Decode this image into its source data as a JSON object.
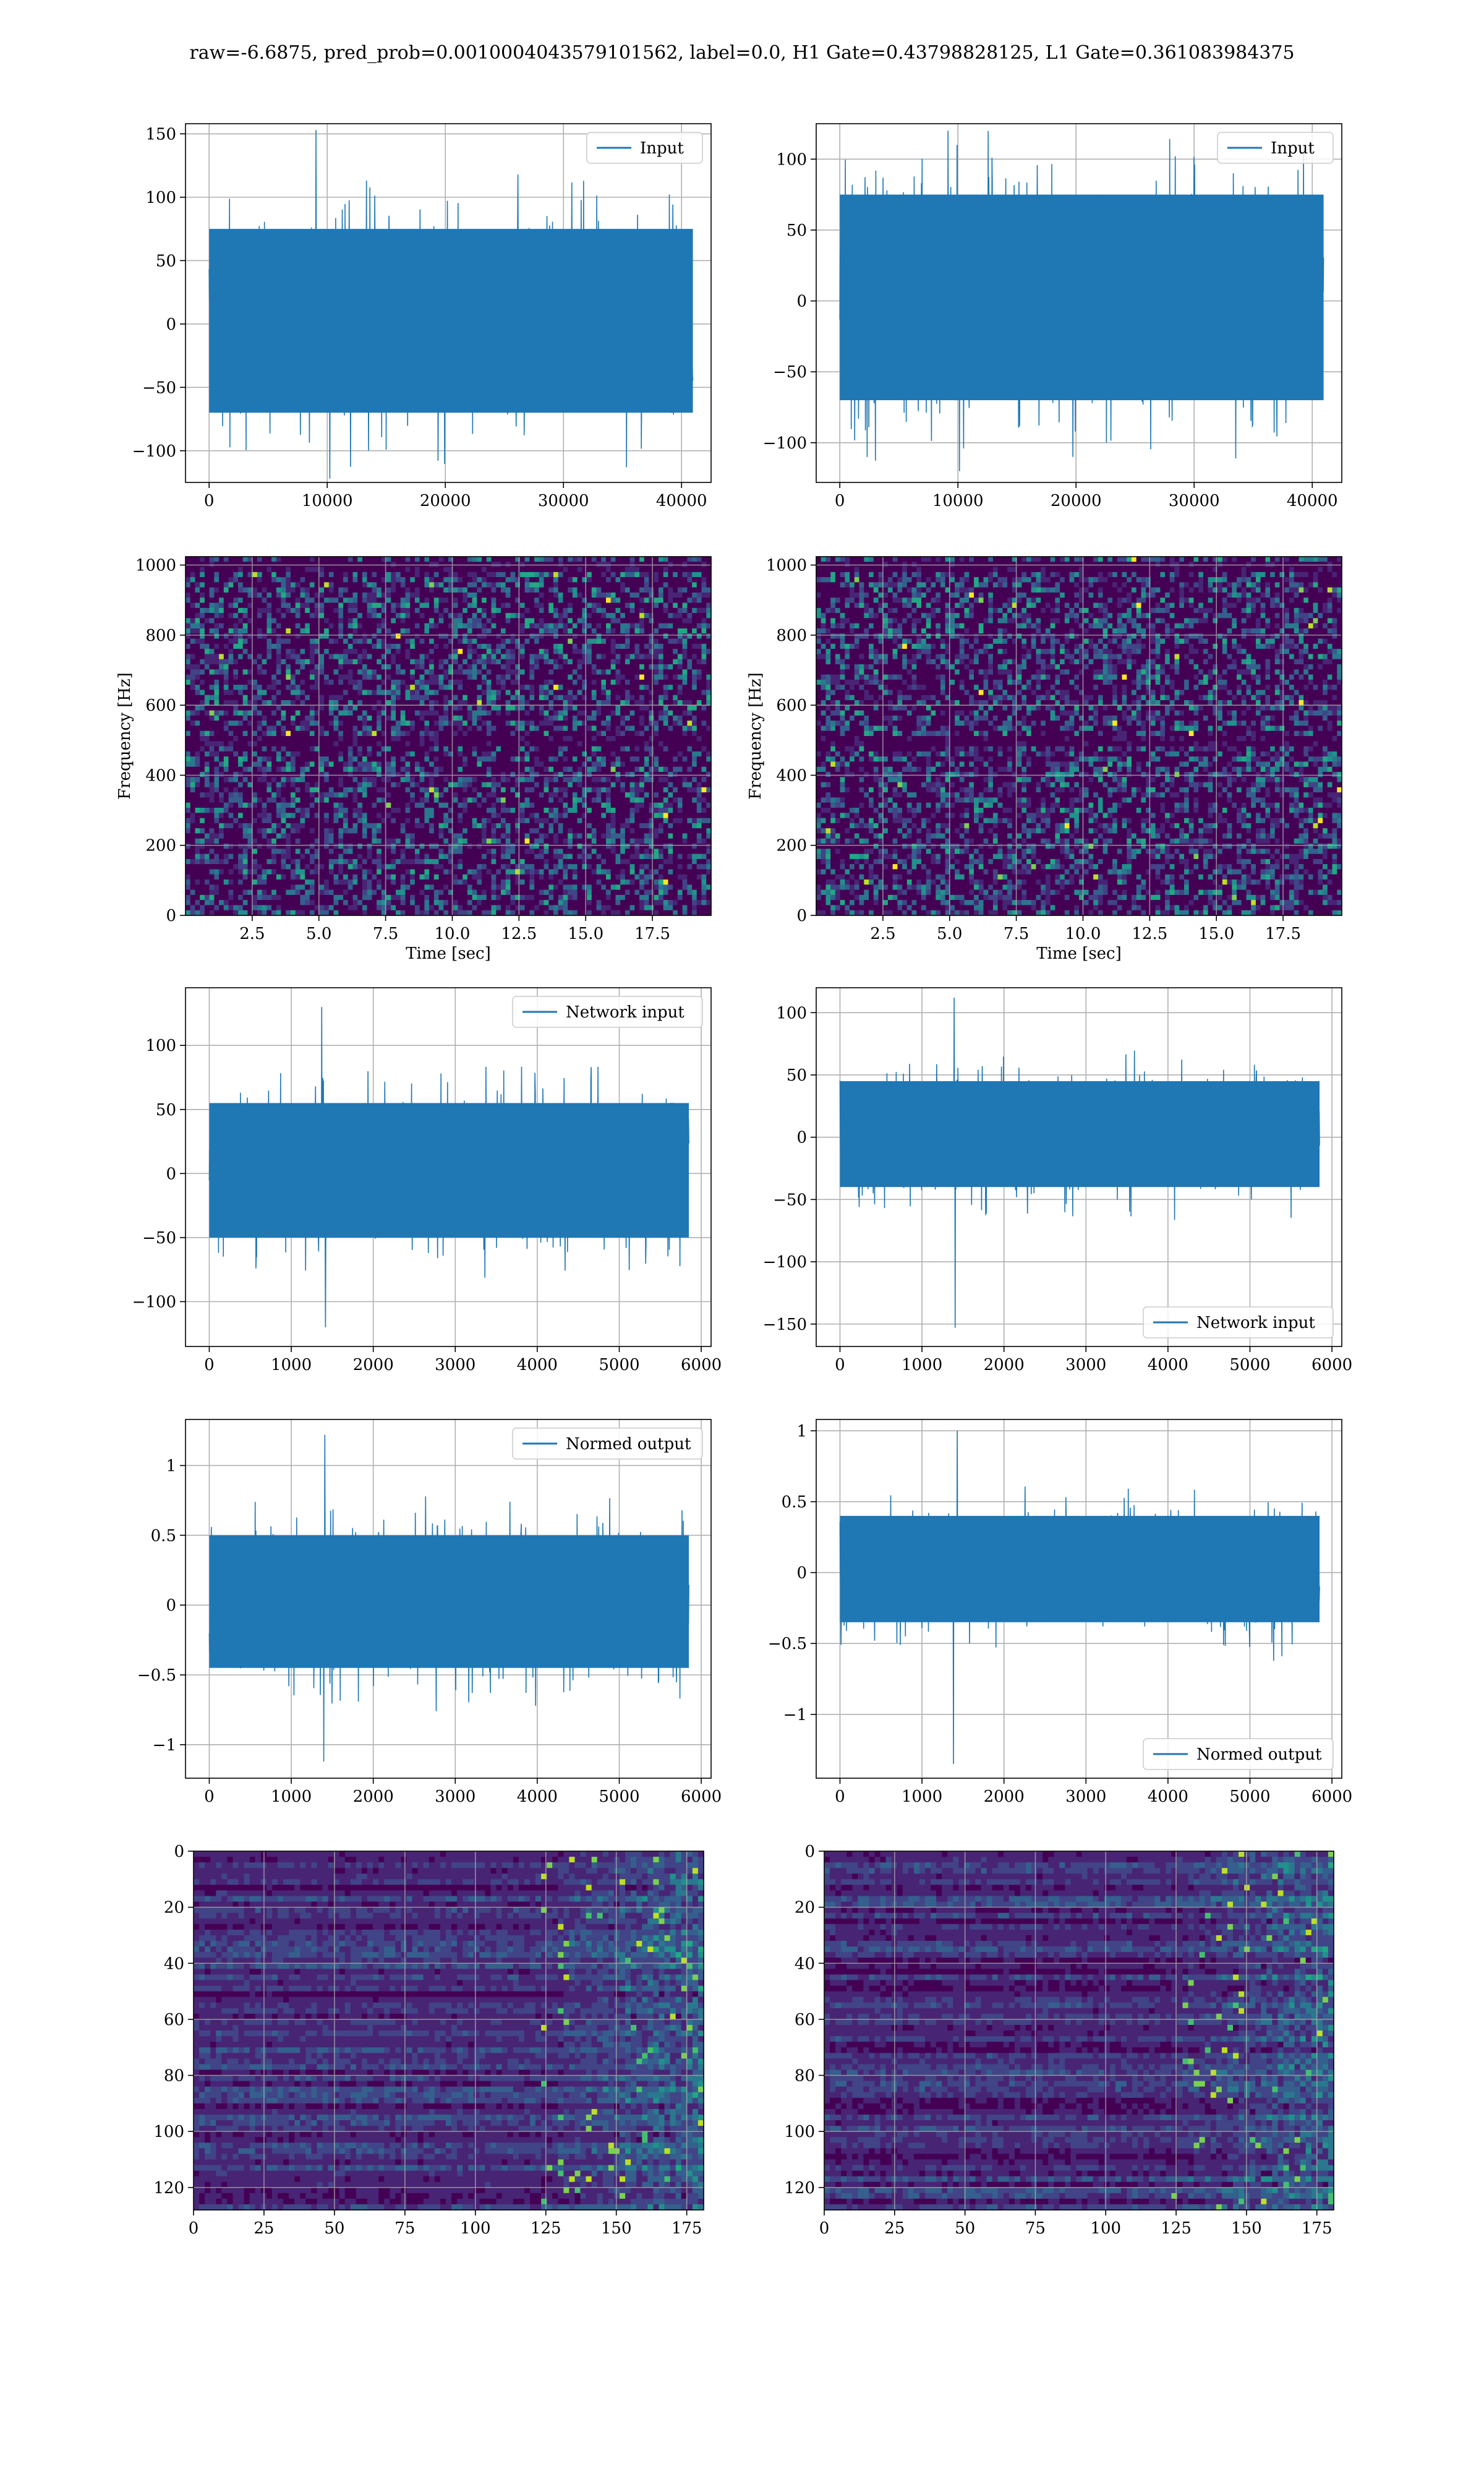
{
  "suptitle": "raw=-6.6875, pred_prob=0.0010004043579101562, label=0.0, H1 Gate=0.43798828125, L1 Gate=0.361083984375",
  "colors": {
    "line": "#1f77b4",
    "grid": "#b0b0b0",
    "viridis_dark": "#440154",
    "viridis_mid": "#3b528b",
    "viridis_teal": "#21918c",
    "viridis_green": "#5ec962",
    "viridis_yellow": "#fde725"
  },
  "chart_data": [
    {
      "id": "p00",
      "type": "line",
      "detector": "H1",
      "legend": "Input",
      "legend_loc": "upper right",
      "xlim": [
        -2000,
        42500
      ],
      "ylim": [
        -125,
        158
      ],
      "xticks": [
        0,
        10000,
        20000,
        30000,
        40000
      ],
      "yticks": [
        -100,
        -50,
        0,
        50,
        100,
        150
      ],
      "n_samples": 40960,
      "envelope_bulk": [
        -70,
        75
      ],
      "extremes": [
        -122,
        153
      ],
      "xlabel": "",
      "ylabel": "",
      "grid": true
    },
    {
      "id": "p01",
      "type": "line",
      "detector": "L1",
      "legend": "Input",
      "legend_loc": "upper right",
      "xlim": [
        -2000,
        42500
      ],
      "ylim": [
        -128,
        125
      ],
      "xticks": [
        0,
        10000,
        20000,
        30000,
        40000
      ],
      "yticks": [
        -100,
        -50,
        0,
        50,
        100
      ],
      "n_samples": 40960,
      "envelope_bulk": [
        -70,
        75
      ],
      "extremes": [
        -120,
        120
      ],
      "xlabel": "",
      "ylabel": "",
      "grid": true
    },
    {
      "id": "p10",
      "type": "heatmap",
      "detector": "H1",
      "xlim": [
        0,
        19.7
      ],
      "ylim": [
        0,
        1024
      ],
      "xticks": [
        2.5,
        5.0,
        7.5,
        10.0,
        12.5,
        15.0,
        17.5
      ],
      "yticks": [
        0,
        200,
        400,
        600,
        800,
        1000
      ],
      "xtick_labels": [
        "2.5",
        "5.0",
        "7.5",
        "10.0",
        "12.5",
        "15.0",
        "17.5"
      ],
      "xlabel": "Time [sec]",
      "ylabel": "Frequency [Hz]",
      "colormap": "viridis",
      "dark_bands_hz": [
        500,
        1000
      ],
      "grid": true
    },
    {
      "id": "p11",
      "type": "heatmap",
      "detector": "L1",
      "xlim": [
        0,
        19.7
      ],
      "ylim": [
        0,
        1024
      ],
      "xticks": [
        2.5,
        5.0,
        7.5,
        10.0,
        12.5,
        15.0,
        17.5
      ],
      "yticks": [
        0,
        200,
        400,
        600,
        800,
        1000
      ],
      "xtick_labels": [
        "2.5",
        "5.0",
        "7.5",
        "10.0",
        "12.5",
        "15.0",
        "17.5"
      ],
      "xlabel": "Time [sec]",
      "ylabel": "Frequency [Hz]",
      "colormap": "viridis",
      "dark_bands_hz": [
        500,
        1000
      ],
      "grid": true
    },
    {
      "id": "p20",
      "type": "line",
      "detector": "H1",
      "legend": "Network input",
      "legend_loc": "upper right",
      "xlim": [
        -290,
        6120
      ],
      "ylim": [
        -135,
        145
      ],
      "xticks": [
        0,
        1000,
        2000,
        3000,
        4000,
        5000,
        6000
      ],
      "yticks": [
        -100,
        -50,
        0,
        50,
        100
      ],
      "n_samples": 5850,
      "envelope_bulk": [
        -50,
        55
      ],
      "extremes": [
        -120,
        130
      ],
      "xlabel": "",
      "ylabel": "",
      "grid": true
    },
    {
      "id": "p21",
      "type": "line",
      "detector": "L1",
      "legend": "Network input",
      "legend_loc": "lower right",
      "xlim": [
        -290,
        6120
      ],
      "ylim": [
        -168,
        120
      ],
      "xticks": [
        0,
        1000,
        2000,
        3000,
        4000,
        5000,
        6000
      ],
      "yticks": [
        -150,
        -100,
        -50,
        0,
        50,
        100
      ],
      "n_samples": 5850,
      "envelope_bulk": [
        -40,
        45
      ],
      "extremes": [
        -153,
        112
      ],
      "xlabel": "",
      "ylabel": "",
      "grid": true
    },
    {
      "id": "p30",
      "type": "line",
      "detector": "H1",
      "legend": "Normed output",
      "legend_loc": "upper right",
      "xlim": [
        -290,
        6120
      ],
      "ylim": [
        -1.24,
        1.33
      ],
      "xticks": [
        0,
        1000,
        2000,
        3000,
        4000,
        5000,
        6000
      ],
      "yticks": [
        -1.0,
        -0.5,
        0.0,
        0.5,
        1.0
      ],
      "n_samples": 5850,
      "envelope_bulk": [
        -0.45,
        0.5
      ],
      "extremes": [
        -1.12,
        1.22
      ],
      "xlabel": "",
      "ylabel": "",
      "grid": true
    },
    {
      "id": "p31",
      "type": "line",
      "detector": "L1",
      "legend": "Normed output",
      "legend_loc": "lower right",
      "xlim": [
        -290,
        6120
      ],
      "ylim": [
        -1.45,
        1.08
      ],
      "xticks": [
        0,
        1000,
        2000,
        3000,
        4000,
        5000,
        6000
      ],
      "yticks": [
        -1.0,
        -0.5,
        0.0,
        0.5,
        1.0
      ],
      "n_samples": 5850,
      "envelope_bulk": [
        -0.35,
        0.4
      ],
      "extremes": [
        -1.35,
        1.0
      ],
      "xlabel": "",
      "ylabel": "",
      "grid": true
    },
    {
      "id": "p40",
      "type": "heatmap",
      "detector": "H1",
      "xlim": [
        0,
        181
      ],
      "ylim": [
        128,
        0
      ],
      "xticks": [
        0,
        25,
        50,
        75,
        100,
        125,
        150,
        175
      ],
      "yticks": [
        0,
        20,
        40,
        60,
        80,
        100,
        120
      ],
      "xlabel": "",
      "ylabel": "",
      "colormap": "viridis",
      "bright_region_x": [
        125,
        181
      ],
      "grid": true
    },
    {
      "id": "p41",
      "type": "heatmap",
      "detector": "L1",
      "xlim": [
        0,
        181
      ],
      "ylim": [
        128,
        0
      ],
      "xticks": [
        0,
        25,
        50,
        75,
        100,
        125,
        150,
        175
      ],
      "yticks": [
        0,
        20,
        40,
        60,
        80,
        100,
        120
      ],
      "xlabel": "",
      "ylabel": "",
      "colormap": "viridis",
      "bright_region_x": [
        125,
        181
      ],
      "grid": true
    }
  ]
}
